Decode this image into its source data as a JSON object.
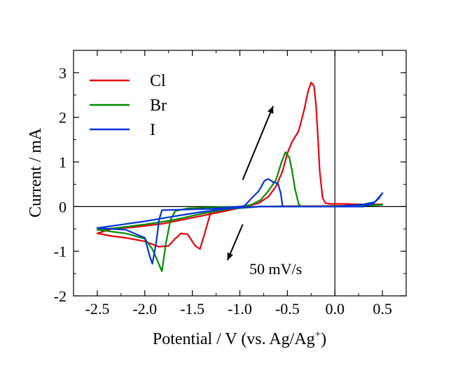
{
  "chart_data": {
    "type": "line",
    "xlabel": "Potential / V (vs. Ag/Ag",
    "xlabel_sup": "+",
    "xlabel_end": ")",
    "ylabel": "Current / mA",
    "xlim": [
      -2.75,
      0.75
    ],
    "ylim": [
      -2,
      3.5
    ],
    "x_ticks": [
      -2.5,
      -2.0,
      -1.5,
      -1.0,
      -0.5,
      0.0,
      0.5
    ],
    "x_tick_labels": [
      "-2.5",
      "-2.0",
      "-1.5",
      "-1.0",
      "-0.5",
      "0.0",
      "0.5"
    ],
    "y_ticks": [
      -2,
      -1,
      0,
      1,
      2,
      3
    ],
    "y_tick_labels": [
      "-2",
      "-1",
      "0",
      "1",
      "2",
      "3"
    ],
    "grid": false,
    "legend_position": "top-left",
    "annotation": "50 mV/s",
    "series": [
      {
        "name": "Cl",
        "color": "#e8000b",
        "points": [
          [
            0.5,
            0.05
          ],
          [
            0.3,
            0.05
          ],
          [
            0.1,
            0.06
          ],
          [
            -0.05,
            0.06
          ],
          [
            -0.1,
            0.08
          ],
          [
            -0.13,
            0.2
          ],
          [
            -0.16,
            0.8
          ],
          [
            -0.18,
            1.6
          ],
          [
            -0.2,
            2.3
          ],
          [
            -0.22,
            2.7
          ],
          [
            -0.25,
            2.78
          ],
          [
            -0.28,
            2.6
          ],
          [
            -0.32,
            2.2
          ],
          [
            -0.38,
            1.7
          ],
          [
            -0.45,
            1.45
          ],
          [
            -0.5,
            1.2
          ],
          [
            -0.55,
            0.8
          ],
          [
            -0.62,
            0.45
          ],
          [
            -0.7,
            0.22
          ],
          [
            -0.8,
            0.08
          ],
          [
            -0.9,
            0.02
          ],
          [
            -1.0,
            0.0
          ],
          [
            -1.1,
            -0.02
          ],
          [
            -1.25,
            -0.05
          ],
          [
            -1.3,
            -0.1
          ],
          [
            -1.33,
            -0.3
          ],
          [
            -1.37,
            -0.6
          ],
          [
            -1.42,
            -0.95
          ],
          [
            -1.47,
            -0.88
          ],
          [
            -1.55,
            -0.62
          ],
          [
            -1.62,
            -0.6
          ],
          [
            -1.68,
            -0.72
          ],
          [
            -1.75,
            -0.88
          ],
          [
            -1.85,
            -0.9
          ],
          [
            -2.0,
            -0.78
          ],
          [
            -2.2,
            -0.7
          ],
          [
            -2.35,
            -0.66
          ],
          [
            -2.5,
            -0.6
          ],
          [
            -2.35,
            -0.5
          ],
          [
            -2.1,
            -0.46
          ],
          [
            -1.8,
            -0.38
          ],
          [
            -1.5,
            -0.25
          ],
          [
            -1.2,
            -0.12
          ],
          [
            -1.0,
            -0.03
          ],
          [
            -0.8,
            0.0
          ],
          [
            -0.5,
            0.01
          ],
          [
            -0.2,
            0.01
          ],
          [
            0.1,
            0.02
          ],
          [
            0.3,
            0.05
          ],
          [
            0.45,
            0.05
          ],
          [
            0.5,
            0.05
          ]
        ]
      },
      {
        "name": "Br",
        "color": "#008c00",
        "points": [
          [
            0.5,
            0.04
          ],
          [
            0.2,
            0.01
          ],
          [
            -0.2,
            0.0
          ],
          [
            -0.35,
            0.0
          ],
          [
            -0.38,
            0.05
          ],
          [
            -0.42,
            0.4
          ],
          [
            -0.45,
            0.8
          ],
          [
            -0.48,
            1.1
          ],
          [
            -0.52,
            1.22
          ],
          [
            -0.56,
            1.0
          ],
          [
            -0.62,
            0.6
          ],
          [
            -0.7,
            0.35
          ],
          [
            -0.78,
            0.15
          ],
          [
            -0.88,
            0.04
          ],
          [
            -1.0,
            0.0
          ],
          [
            -1.3,
            -0.02
          ],
          [
            -1.55,
            -0.04
          ],
          [
            -1.68,
            -0.1
          ],
          [
            -1.73,
            -0.3
          ],
          [
            -1.78,
            -0.85
          ],
          [
            -1.82,
            -1.45
          ],
          [
            -1.86,
            -1.25
          ],
          [
            -1.92,
            -0.95
          ],
          [
            -2.0,
            -0.72
          ],
          [
            -2.2,
            -0.6
          ],
          [
            -2.5,
            -0.52
          ],
          [
            -2.3,
            -0.48
          ],
          [
            -2.0,
            -0.4
          ],
          [
            -1.7,
            -0.3
          ],
          [
            -1.4,
            -0.16
          ],
          [
            -1.1,
            -0.05
          ],
          [
            -0.8,
            0.0
          ],
          [
            -0.4,
            0.0
          ],
          [
            0.0,
            0.01
          ],
          [
            0.3,
            0.02
          ],
          [
            0.5,
            0.04
          ]
        ]
      },
      {
        "name": "I",
        "color": "#0033dd",
        "points": [
          [
            0.5,
            0.3
          ],
          [
            0.46,
            0.18
          ],
          [
            0.4,
            0.06
          ],
          [
            0.3,
            0.0
          ],
          [
            0.0,
            0.0
          ],
          [
            -0.4,
            0.0
          ],
          [
            -0.55,
            0.0
          ],
          [
            -0.57,
            0.3
          ],
          [
            -0.6,
            0.52
          ],
          [
            -0.65,
            0.55
          ],
          [
            -0.7,
            0.62
          ],
          [
            -0.74,
            0.58
          ],
          [
            -0.8,
            0.35
          ],
          [
            -0.88,
            0.18
          ],
          [
            -0.95,
            0.02
          ],
          [
            -1.0,
            0.0
          ],
          [
            -1.3,
            -0.05
          ],
          [
            -1.65,
            -0.07
          ],
          [
            -1.82,
            -0.08
          ],
          [
            -1.85,
            -0.3
          ],
          [
            -1.88,
            -0.8
          ],
          [
            -1.92,
            -1.28
          ],
          [
            -1.95,
            -1.1
          ],
          [
            -2.0,
            -0.7
          ],
          [
            -2.2,
            -0.52
          ],
          [
            -2.5,
            -0.48
          ],
          [
            -2.3,
            -0.42
          ],
          [
            -2.0,
            -0.33
          ],
          [
            -1.7,
            -0.22
          ],
          [
            -1.4,
            -0.12
          ],
          [
            -1.1,
            -0.04
          ],
          [
            -0.8,
            0.0
          ],
          [
            -0.4,
            0.0
          ],
          [
            0.0,
            0.0
          ],
          [
            0.3,
            0.05
          ],
          [
            0.42,
            0.1
          ],
          [
            0.5,
            0.3
          ]
        ]
      }
    ],
    "arrows": [
      {
        "from": [
          -0.97,
          0.6
        ],
        "to": [
          -0.65,
          2.25
        ]
      },
      {
        "from": [
          -0.97,
          -0.4
        ],
        "to": [
          -1.13,
          -1.2
        ]
      }
    ]
  }
}
